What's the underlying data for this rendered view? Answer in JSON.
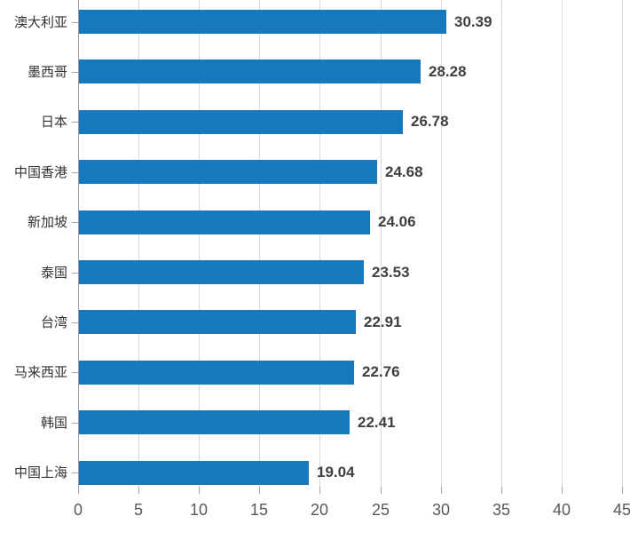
{
  "chart_data": {
    "type": "bar",
    "orientation": "horizontal",
    "title": "",
    "xlabel": "",
    "ylabel": "",
    "categories": [
      "澳大利亚",
      "墨西哥",
      "日本",
      "中国香港",
      "新加坡",
      "泰国",
      "台湾",
      "马来西亚",
      "韩国",
      "中国上海"
    ],
    "values": [
      30.39,
      28.28,
      26.78,
      24.68,
      24.06,
      23.53,
      22.91,
      22.76,
      22.41,
      19.04
    ],
    "value_labels": [
      "30.39",
      "28.28",
      "26.78",
      "24.68",
      "24.06",
      "23.53",
      "22.91",
      "22.76",
      "22.41",
      "19.04"
    ],
    "xlim": [
      0,
      45
    ],
    "x_ticks": [
      0,
      5,
      10,
      15,
      20,
      25,
      30,
      35,
      40,
      45
    ],
    "x_tick_labels": [
      "0",
      "5",
      "10",
      "15",
      "20",
      "25",
      "30",
      "35",
      "40",
      "45"
    ],
    "grid": true,
    "legend": "none",
    "colors": {
      "bar": "#1878be",
      "gridline": "#d9d9d9",
      "axis_line": "#9d9d9d",
      "tick_mark": "#a6a6a6",
      "x_tick_label": "#595959",
      "value_label": "#404040",
      "category_label": "#333333",
      "background": "#ffffff"
    }
  }
}
